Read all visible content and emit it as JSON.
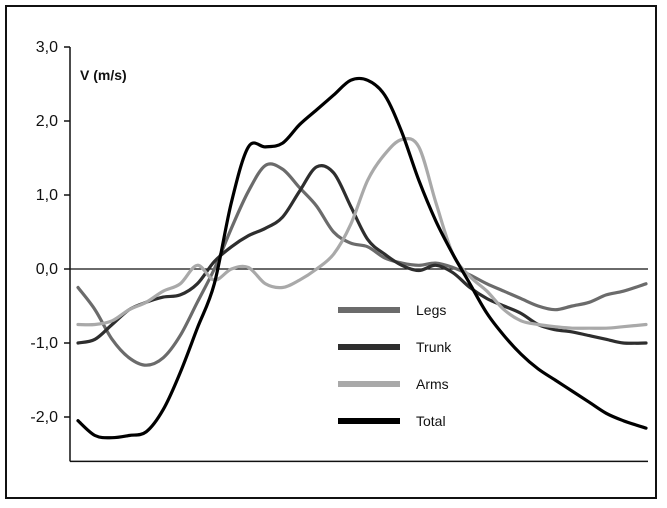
{
  "chart_data": {
    "type": "line",
    "ylabel": "V (m/s)",
    "ylim": [
      -2.6,
      3.0
    ],
    "yticks": [
      {
        "value": 3.0,
        "label": "3,0"
      },
      {
        "value": 2.0,
        "label": "2,0"
      },
      {
        "value": 1.0,
        "label": "1,0"
      },
      {
        "value": 0.0,
        "label": "0,0"
      },
      {
        "value": -1.0,
        "label": "-1,0"
      },
      {
        "value": -2.0,
        "label": "-2,0"
      }
    ],
    "xlim": [
      0,
      100
    ],
    "grid": false,
    "legend_position": "lower-center",
    "x": [
      0,
      3,
      6,
      9,
      12,
      15,
      18,
      21,
      24,
      27,
      30,
      33,
      36,
      39,
      42,
      45,
      48,
      51,
      54,
      57,
      60,
      63,
      66,
      69,
      72,
      75,
      78,
      81,
      84,
      87,
      90,
      93,
      96,
      100
    ],
    "series": [
      {
        "name": "Legs",
        "color": "#6b6b6b",
        "values": [
          -0.25,
          -0.55,
          -0.95,
          -1.2,
          -1.3,
          -1.2,
          -0.9,
          -0.45,
          0.0,
          0.55,
          1.05,
          1.4,
          1.35,
          1.1,
          0.85,
          0.5,
          0.35,
          0.3,
          0.15,
          0.08,
          0.05,
          0.08,
          0.02,
          -0.08,
          -0.2,
          -0.3,
          -0.4,
          -0.5,
          -0.55,
          -0.5,
          -0.45,
          -0.35,
          -0.3,
          -0.2
        ]
      },
      {
        "name": "Trunk",
        "color": "#2e2e2e",
        "values": [
          -1.0,
          -0.95,
          -0.75,
          -0.55,
          -0.45,
          -0.38,
          -0.35,
          -0.2,
          0.1,
          0.3,
          0.45,
          0.55,
          0.7,
          1.05,
          1.38,
          1.3,
          0.85,
          0.4,
          0.2,
          0.05,
          -0.02,
          0.05,
          -0.05,
          -0.25,
          -0.4,
          -0.5,
          -0.6,
          -0.75,
          -0.82,
          -0.85,
          -0.9,
          -0.95,
          -1.0,
          -1.0
        ]
      },
      {
        "name": "Arms",
        "color": "#a9a9a9",
        "values": [
          -0.75,
          -0.75,
          -0.7,
          -0.55,
          -0.45,
          -0.3,
          -0.2,
          0.05,
          -0.15,
          0.0,
          0.02,
          -0.2,
          -0.25,
          -0.15,
          0.0,
          0.2,
          0.6,
          1.2,
          1.55,
          1.75,
          1.65,
          0.9,
          0.2,
          -0.1,
          -0.3,
          -0.55,
          -0.7,
          -0.75,
          -0.78,
          -0.8,
          -0.8,
          -0.8,
          -0.78,
          -0.75
        ]
      },
      {
        "name": "Total",
        "color": "#000000",
        "values": [
          -2.05,
          -2.25,
          -2.28,
          -2.25,
          -2.2,
          -1.9,
          -1.4,
          -0.8,
          -0.2,
          0.9,
          1.65,
          1.65,
          1.7,
          1.95,
          2.15,
          2.35,
          2.55,
          2.55,
          2.35,
          1.85,
          1.2,
          0.65,
          0.2,
          -0.2,
          -0.6,
          -0.9,
          -1.15,
          -1.35,
          -1.5,
          -1.65,
          -1.8,
          -1.95,
          -2.05,
          -2.15
        ]
      }
    ]
  }
}
